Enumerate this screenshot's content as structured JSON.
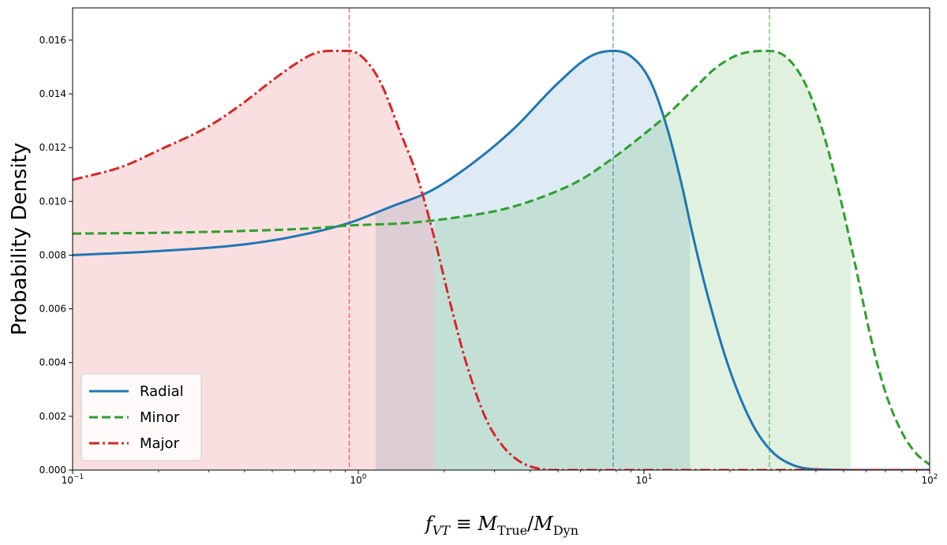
{
  "chart_data": {
    "type": "line",
    "xlabel": "f_VT ≡ M_True/M_Dyn",
    "ylabel": "Probability Density",
    "xscale": "log",
    "xlim": [
      0.1,
      100
    ],
    "ylim": [
      0,
      0.0172
    ],
    "x_ticks": [
      {
        "value": 0.1,
        "label": "10",
        "exp": "−1"
      },
      {
        "value": 1,
        "label": "10",
        "exp": "0"
      },
      {
        "value": 10,
        "label": "10",
        "exp": "1"
      },
      {
        "value": 100,
        "label": "10",
        "exp": "2"
      }
    ],
    "y_ticks": [
      0.0,
      0.002,
      0.004,
      0.006,
      0.008,
      0.01,
      0.012,
      0.014,
      0.016
    ],
    "y_tick_labels": [
      "0.000",
      "0.002",
      "0.004",
      "0.006",
      "0.008",
      "0.010",
      "0.012",
      "0.014",
      "0.016"
    ],
    "grid": false,
    "legend": {
      "position": "lower-left",
      "entries": [
        "Radial",
        "Minor",
        "Major"
      ]
    },
    "series": [
      {
        "name": "Radial",
        "color": "#1f77b4",
        "style": "solid",
        "peak_x": 7.8,
        "x": [
          0.1,
          0.2,
          0.4,
          0.6,
          0.93,
          1.3,
          1.8,
          2.5,
          3.5,
          5,
          6.5,
          7.8,
          9,
          10.5,
          12,
          13.5,
          15,
          17,
          20,
          24,
          28,
          33,
          40,
          60,
          100
        ],
        "y": [
          0.008,
          0.00815,
          0.0084,
          0.0087,
          0.0092,
          0.0098,
          0.0104,
          0.0114,
          0.0127,
          0.0144,
          0.0154,
          0.0156,
          0.0154,
          0.0145,
          0.0128,
          0.0107,
          0.0085,
          0.0062,
          0.0037,
          0.0017,
          0.0007,
          0.0002,
          3e-05,
          0.0,
          0.0
        ],
        "shade_range": [
          1.15,
          14.5
        ]
      },
      {
        "name": "Minor",
        "color": "#2ca02c",
        "style": "dashed",
        "peak_x": 27.5,
        "x": [
          0.1,
          0.2,
          0.4,
          0.7,
          0.93,
          1.5,
          2.2,
          3.2,
          4.5,
          6,
          8,
          10,
          12,
          15,
          18,
          22,
          27.5,
          32,
          37,
          42,
          48,
          55,
          62,
          70,
          80,
          90,
          100
        ],
        "y": [
          0.0088,
          0.00883,
          0.0089,
          0.009,
          0.0091,
          0.0092,
          0.0094,
          0.0097,
          0.0102,
          0.0108,
          0.0117,
          0.0125,
          0.0132,
          0.0142,
          0.015,
          0.0155,
          0.0156,
          0.0153,
          0.0143,
          0.0127,
          0.0104,
          0.0076,
          0.005,
          0.0029,
          0.0014,
          0.0006,
          0.0002
        ],
        "shade_range": [
          1.85,
          53
        ]
      },
      {
        "name": "Major",
        "color": "#d62728",
        "style": "dashdot",
        "peak_x": 0.93,
        "x": [
          0.1,
          0.15,
          0.2,
          0.3,
          0.4,
          0.5,
          0.6,
          0.7,
          0.8,
          0.93,
          1.05,
          1.2,
          1.4,
          1.6,
          1.85,
          2.1,
          2.4,
          2.8,
          3.2,
          3.7,
          4.3,
          5,
          7,
          10,
          100
        ],
        "y": [
          0.0108,
          0.0113,
          0.0119,
          0.0128,
          0.0137,
          0.0145,
          0.0151,
          0.0155,
          0.0156,
          0.0156,
          0.0153,
          0.0144,
          0.0126,
          0.011,
          0.0086,
          0.0062,
          0.0039,
          0.0019,
          0.0009,
          0.0003,
          5e-05,
          0.0,
          0.0,
          0.0,
          0.0
        ],
        "shade_range": [
          0.1,
          1.85
        ]
      }
    ],
    "vlines": [
      {
        "x": 0.93,
        "color": "#d62728"
      },
      {
        "x": 7.8,
        "color": "#1f77b4"
      },
      {
        "x": 27.5,
        "color": "#2ca02c"
      }
    ]
  }
}
